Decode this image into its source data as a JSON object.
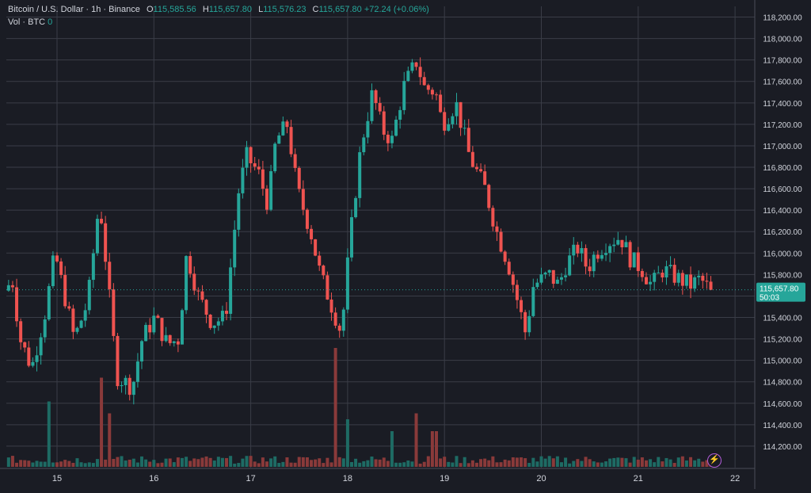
{
  "legend": {
    "symbol": "Bitcoin / U.S. Dollar · 1h · Binance",
    "o_label": "O",
    "o_value": "115,585.56",
    "h_label": "H",
    "h_value": "115,657.80",
    "l_label": "L",
    "l_value": "115,576.23",
    "c_label": "C",
    "c_value": "115,657.80",
    "change": "+72.24 (+0.06%)",
    "vol_label": "Vol · BTC",
    "vol_value": "0"
  },
  "price_tag": {
    "price": "115,657.80",
    "countdown": "50:03"
  },
  "colors": {
    "up": "#26a69a",
    "down": "#ef5350",
    "up_vol": "#1e6b64",
    "down_vol": "#8a3a3a",
    "grid": "#3a3d47",
    "background": "#1a1c24",
    "axis_text": "#d1d4dc"
  },
  "icons": {
    "bolt": "lightning-bolt-icon"
  },
  "chart_data": {
    "type": "candlestick",
    "symbol": "Bitcoin / U.S. Dollar",
    "interval": "1h",
    "exchange": "Binance",
    "ylim": [
      114000,
      118300
    ],
    "xlim": [
      14.5,
      22.2
    ],
    "y_tick_labels": [
      "114,200.00",
      "114,400.00",
      "114,600.00",
      "114,800.00",
      "115,000.00",
      "115,200.00",
      "115,400.00",
      "115,600.00",
      "115,800.00",
      "116,000.00",
      "116,200.00",
      "116,400.00",
      "116,600.00",
      "116,800.00",
      "117,000.00",
      "117,200.00",
      "117,400.00",
      "117,600.00",
      "117,800.00",
      "118,000.00",
      "118,200.00"
    ],
    "y_ticks": [
      114200,
      114400,
      114600,
      114800,
      115000,
      115200,
      115400,
      115600,
      115800,
      116000,
      116200,
      116400,
      116600,
      116800,
      117000,
      117200,
      117400,
      117600,
      117800,
      118000,
      118200
    ],
    "x_tick_labels": [
      "15",
      "16",
      "17",
      "18",
      "19",
      "20",
      "21",
      "22"
    ],
    "x_ticks": [
      15,
      16,
      17,
      18,
      19,
      20,
      21,
      22
    ],
    "last_price": 115657.8,
    "grid": true,
    "anchors": [
      [
        14.5,
        115650
      ],
      [
        14.58,
        115750
      ],
      [
        14.66,
        115200
      ],
      [
        14.78,
        114930
      ],
      [
        14.92,
        115450
      ],
      [
        15.02,
        116000
      ],
      [
        15.12,
        115600
      ],
      [
        15.22,
        115200
      ],
      [
        15.36,
        115550
      ],
      [
        15.48,
        116500
      ],
      [
        15.56,
        115800
      ],
      [
        15.66,
        114850
      ],
      [
        15.82,
        114750
      ],
      [
        15.92,
        115200
      ],
      [
        16.05,
        115400
      ],
      [
        16.18,
        115150
      ],
      [
        16.3,
        115200
      ],
      [
        16.38,
        116000
      ],
      [
        16.5,
        115600
      ],
      [
        16.64,
        115350
      ],
      [
        16.78,
        115400
      ],
      [
        16.86,
        116100
      ],
      [
        16.92,
        116600
      ],
      [
        17.0,
        116900
      ],
      [
        17.12,
        116750
      ],
      [
        17.22,
        116450
      ],
      [
        17.3,
        117050
      ],
      [
        17.42,
        117200
      ],
      [
        17.52,
        116600
      ],
      [
        17.66,
        116200
      ],
      [
        17.76,
        115800
      ],
      [
        17.88,
        115500
      ],
      [
        17.98,
        115250
      ],
      [
        18.02,
        115700
      ],
      [
        18.1,
        116400
      ],
      [
        18.18,
        117000
      ],
      [
        18.3,
        117500
      ],
      [
        18.4,
        117150
      ],
      [
        18.5,
        117050
      ],
      [
        18.62,
        117550
      ],
      [
        18.76,
        117800
      ],
      [
        18.82,
        117550
      ],
      [
        18.95,
        117500
      ],
      [
        19.02,
        117200
      ],
      [
        19.16,
        117400
      ],
      [
        19.3,
        116900
      ],
      [
        19.46,
        116600
      ],
      [
        19.58,
        116200
      ],
      [
        19.7,
        115900
      ],
      [
        19.88,
        115250
      ],
      [
        19.96,
        115700
      ],
      [
        20.12,
        115800
      ],
      [
        20.22,
        115700
      ],
      [
        20.3,
        115900
      ],
      [
        20.42,
        116050
      ],
      [
        20.52,
        115850
      ],
      [
        20.6,
        116000
      ],
      [
        20.72,
        116100
      ],
      [
        20.86,
        116150
      ],
      [
        20.96,
        115950
      ],
      [
        21.08,
        115850
      ],
      [
        21.18,
        115700
      ],
      [
        21.3,
        115850
      ],
      [
        21.42,
        115780
      ],
      [
        21.58,
        115700
      ],
      [
        21.68,
        115760
      ],
      [
        21.78,
        115657.8
      ]
    ],
    "volume_spikes": [
      [
        14.93,
        0.55
      ],
      [
        15.46,
        0.75
      ],
      [
        15.55,
        0.45
      ],
      [
        17.89,
        1.0
      ],
      [
        18.0,
        0.4
      ],
      [
        18.7,
        0.45
      ],
      [
        18.45,
        0.3
      ],
      [
        18.9,
        0.3
      ]
    ]
  }
}
